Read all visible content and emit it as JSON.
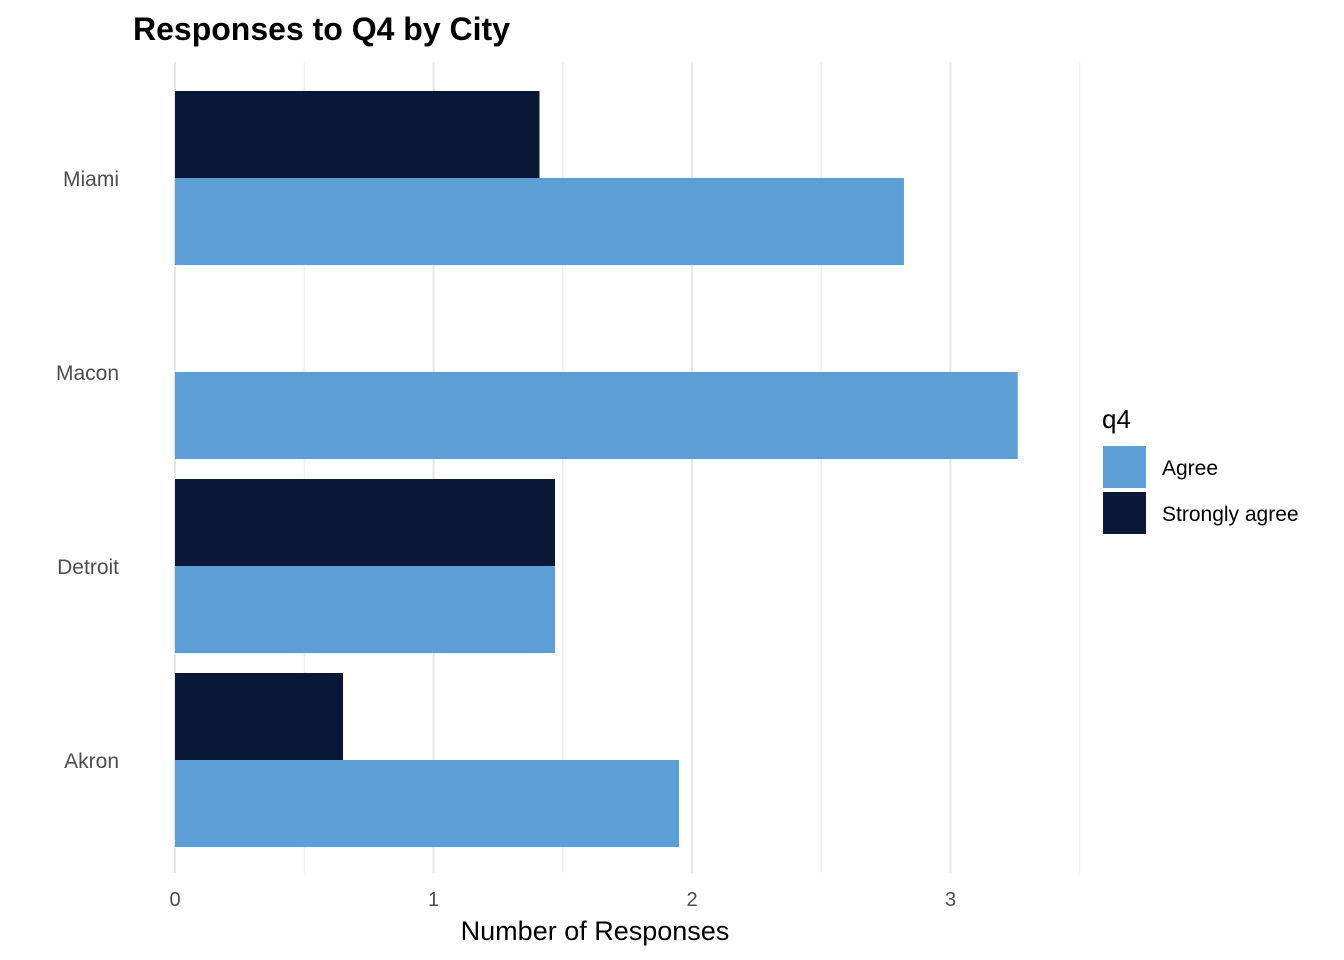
{
  "chart_data": {
    "type": "bar",
    "orientation": "horizontal",
    "title": "Responses to Q4 by City",
    "xlabel": "Number of Responses",
    "ylabel": "",
    "categories": [
      "Miami",
      "Macon",
      "Detroit",
      "Akron"
    ],
    "series": [
      {
        "name": "Agree",
        "color": "#5e9ed6",
        "values": [
          2.82,
          3.26,
          1.47,
          1.95
        ]
      },
      {
        "name": "Strongly agree",
        "color": "#091836",
        "values": [
          1.41,
          null,
          1.47,
          0.65
        ]
      }
    ],
    "xlim": [
      0,
      3.6
    ],
    "xticks": [
      0,
      1,
      2,
      3
    ],
    "xtick_labels": [
      "0",
      "1",
      "2",
      "3"
    ],
    "grid": true,
    "legend": {
      "title": "q4",
      "position": "right"
    }
  }
}
